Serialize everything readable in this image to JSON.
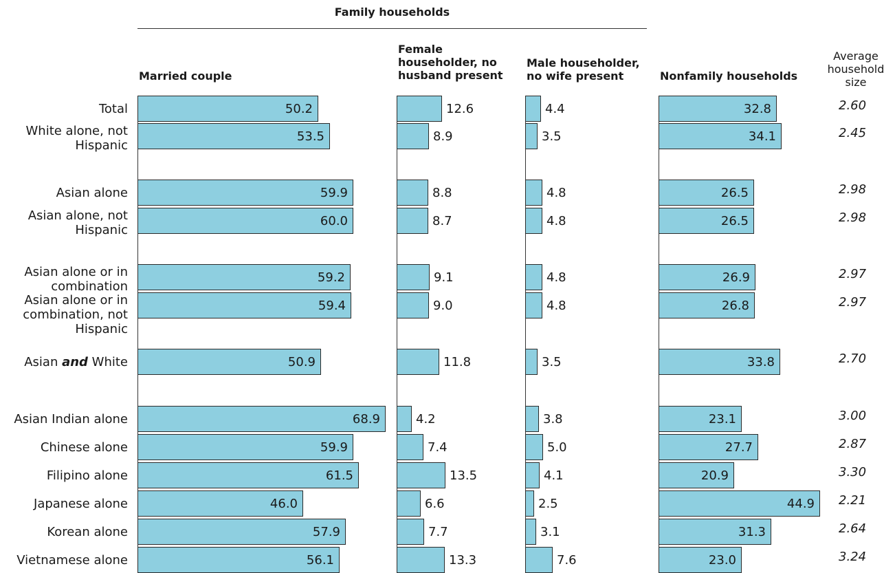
{
  "chart_data": {
    "type": "bar",
    "supertitle": "Family households",
    "columns": [
      {
        "key": "married",
        "label_lines": [
          "Married couple"
        ]
      },
      {
        "key": "female",
        "label_lines": [
          "Female",
          "householder, no",
          "husband present"
        ]
      },
      {
        "key": "male",
        "label_lines": [
          "Male householder,",
          "no wife present"
        ]
      },
      {
        "key": "nonfamily",
        "label_lines": [
          "Nonfamily households"
        ]
      }
    ],
    "avg_header_lines": [
      "Average",
      "household",
      "size"
    ],
    "categories": [
      {
        "label_lines": [
          "Total"
        ]
      },
      {
        "label_lines": [
          "White alone, not",
          "Hispanic"
        ]
      },
      {
        "label_lines": [
          "Asian alone"
        ]
      },
      {
        "label_lines": [
          "Asian alone, not",
          "Hispanic"
        ]
      },
      {
        "label_lines": [
          "Asian alone or in",
          "combination"
        ]
      },
      {
        "label_lines": [
          "Asian alone or in",
          "combination, not",
          "Hispanic"
        ]
      },
      {
        "label_parts": [
          {
            "t": "Asian "
          },
          {
            "t": "and",
            "em": true
          },
          {
            "t": " White"
          }
        ]
      },
      {
        "label_lines": [
          "Asian Indian alone"
        ]
      },
      {
        "label_lines": [
          "Chinese alone"
        ]
      },
      {
        "label_lines": [
          "Filipino alone"
        ]
      },
      {
        "label_lines": [
          "Japanese alone"
        ]
      },
      {
        "label_lines": [
          "Korean alone"
        ]
      },
      {
        "label_lines": [
          "Vietnamese alone"
        ]
      }
    ],
    "series": [
      {
        "name": "Married couple",
        "values": [
          50.2,
          53.5,
          59.9,
          60.0,
          59.2,
          59.4,
          50.9,
          68.9,
          59.9,
          61.5,
          46.0,
          57.9,
          56.1
        ]
      },
      {
        "name": "Female householder, no husband present",
        "values": [
          12.6,
          8.9,
          8.8,
          8.7,
          9.1,
          9.0,
          11.8,
          4.2,
          7.4,
          13.5,
          6.6,
          7.7,
          13.3
        ]
      },
      {
        "name": "Male householder, no wife present",
        "values": [
          4.4,
          3.5,
          4.8,
          4.8,
          4.8,
          4.8,
          3.5,
          3.8,
          5.0,
          4.1,
          2.5,
          3.1,
          7.6
        ]
      },
      {
        "name": "Nonfamily households",
        "values": [
          32.8,
          34.1,
          26.5,
          26.5,
          26.9,
          26.8,
          33.8,
          23.1,
          27.7,
          20.9,
          44.9,
          31.3,
          23.0
        ]
      }
    ],
    "average_household_size": [
      "2.60",
      "2.45",
      "2.98",
      "2.98",
      "2.97",
      "2.97",
      "2.70",
      "3.00",
      "2.87",
      "3.30",
      "2.21",
      "2.64",
      "3.24"
    ],
    "bar_color": "#8ecfe0",
    "edge_color": "#2a2a2a"
  }
}
